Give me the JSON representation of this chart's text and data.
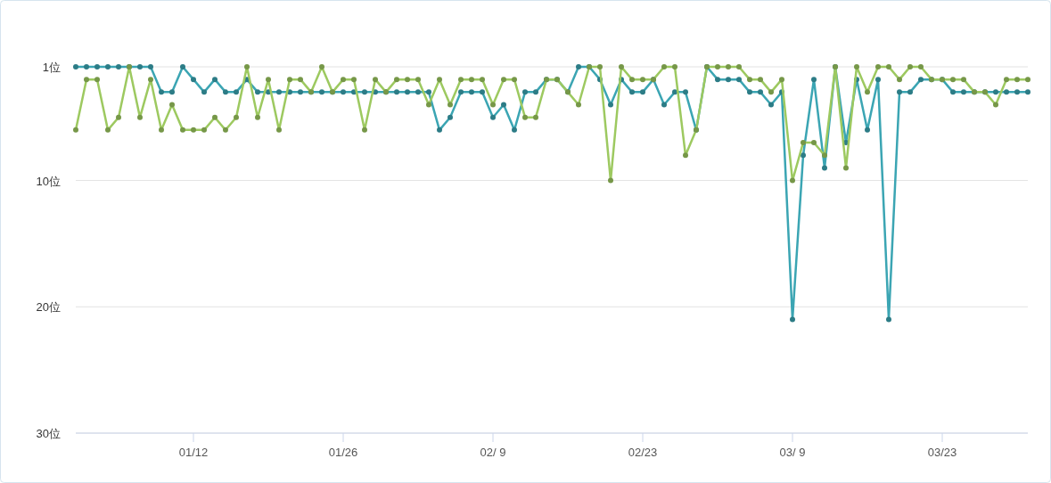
{
  "chart_data": {
    "type": "line",
    "x": [
      "--01-01",
      "--01-02",
      "--01-03",
      "--01-04",
      "--01-05",
      "--01-06",
      "--01-07",
      "--01-08",
      "--01-09",
      "--01-10",
      "--01-11",
      "--01-12",
      "--01-13",
      "--01-14",
      "--01-15",
      "--01-16",
      "--01-17",
      "--01-18",
      "--01-19",
      "--01-20",
      "--01-21",
      "--01-22",
      "--01-23",
      "--01-24",
      "--01-25",
      "--01-26",
      "--01-27",
      "--01-28",
      "--01-29",
      "--01-30",
      "--01-31",
      "--02-01",
      "--02-02",
      "--02-03",
      "--02-04",
      "--02-05",
      "--02-06",
      "--02-07",
      "--02-08",
      "--02-09",
      "--02-10",
      "--02-11",
      "--02-12",
      "--02-13",
      "--02-14",
      "--02-15",
      "--02-16",
      "--02-17",
      "--02-18",
      "--02-19",
      "--02-20",
      "--02-21",
      "--02-22",
      "--02-23",
      "--02-24",
      "--02-25",
      "--02-26",
      "--02-27",
      "--02-28",
      "--03-01",
      "--03-02",
      "--03-03",
      "--03-04",
      "--03-05",
      "--03-06",
      "--03-07",
      "--03-08",
      "--03-09",
      "--03-10",
      "--03-11",
      "--03-12",
      "--03-13",
      "--03-14",
      "--03-15",
      "--03-16",
      "--03-17",
      "--03-18",
      "--03-19",
      "--03-20",
      "--03-21",
      "--03-22",
      "--03-23",
      "--03-24",
      "--03-25",
      "--03-26",
      "--03-27",
      "--03-28",
      "--03-29",
      "--03-30",
      "--03-31"
    ],
    "series": [
      {
        "color": "#3ba5b3",
        "values": [
          1,
          1,
          1,
          1,
          1,
          1,
          1,
          1,
          3,
          3,
          1,
          2,
          3,
          2,
          3,
          3,
          2,
          3,
          3,
          3,
          3,
          3,
          3,
          3,
          3,
          3,
          3,
          3,
          3,
          3,
          3,
          3,
          3,
          3,
          6,
          5,
          3,
          3,
          3,
          5,
          4,
          6,
          3,
          3,
          2,
          2,
          3,
          1,
          1,
          2,
          4,
          2,
          3,
          3,
          2,
          4,
          3,
          3,
          6,
          1,
          2,
          2,
          2,
          3,
          3,
          4,
          3,
          21,
          8,
          2,
          9,
          1,
          7,
          2,
          6,
          2,
          21,
          3,
          3,
          2,
          2,
          2,
          3,
          3,
          3,
          3,
          3,
          3,
          3,
          3
        ]
      },
      {
        "color": "#9dc960",
        "values": [
          6,
          2,
          2,
          6,
          5,
          1,
          5,
          2,
          6,
          4,
          6,
          6,
          6,
          5,
          6,
          5,
          1,
          5,
          2,
          6,
          2,
          2,
          3,
          1,
          3,
          2,
          2,
          6,
          2,
          3,
          2,
          2,
          2,
          4,
          2,
          4,
          2,
          2,
          2,
          4,
          2,
          2,
          5,
          5,
          2,
          2,
          3,
          4,
          1,
          1,
          10,
          1,
          2,
          2,
          2,
          1,
          1,
          8,
          6,
          1,
          1,
          1,
          1,
          2,
          2,
          3,
          2,
          10,
          7,
          7,
          8,
          1,
          9,
          1,
          3,
          1,
          1,
          2,
          1,
          1,
          2,
          2,
          2,
          2,
          3,
          3,
          4,
          2,
          2,
          2
        ]
      }
    ],
    "ylim": [
      30,
      1
    ],
    "yticks": [
      {
        "value": 1,
        "label": "1位"
      },
      {
        "value": 10,
        "label": "10位"
      },
      {
        "value": 20,
        "label": "20位"
      },
      {
        "value": 30,
        "label": "30位"
      }
    ],
    "xlim": [
      "--01-01",
      "--03-31"
    ],
    "xticks": [
      {
        "value": "--01-12",
        "label": "01/12"
      },
      {
        "value": "--01-26",
        "label": "01/26"
      },
      {
        "value": "--02-09",
        "label": "02/ 9"
      },
      {
        "value": "--02-23",
        "label": "02/23"
      },
      {
        "value": "--03-09",
        "label": "03/ 9"
      },
      {
        "value": "--03-23",
        "label": "03/23"
      }
    ],
    "grid": "y",
    "marker": "circle",
    "line_style": "solid"
  }
}
